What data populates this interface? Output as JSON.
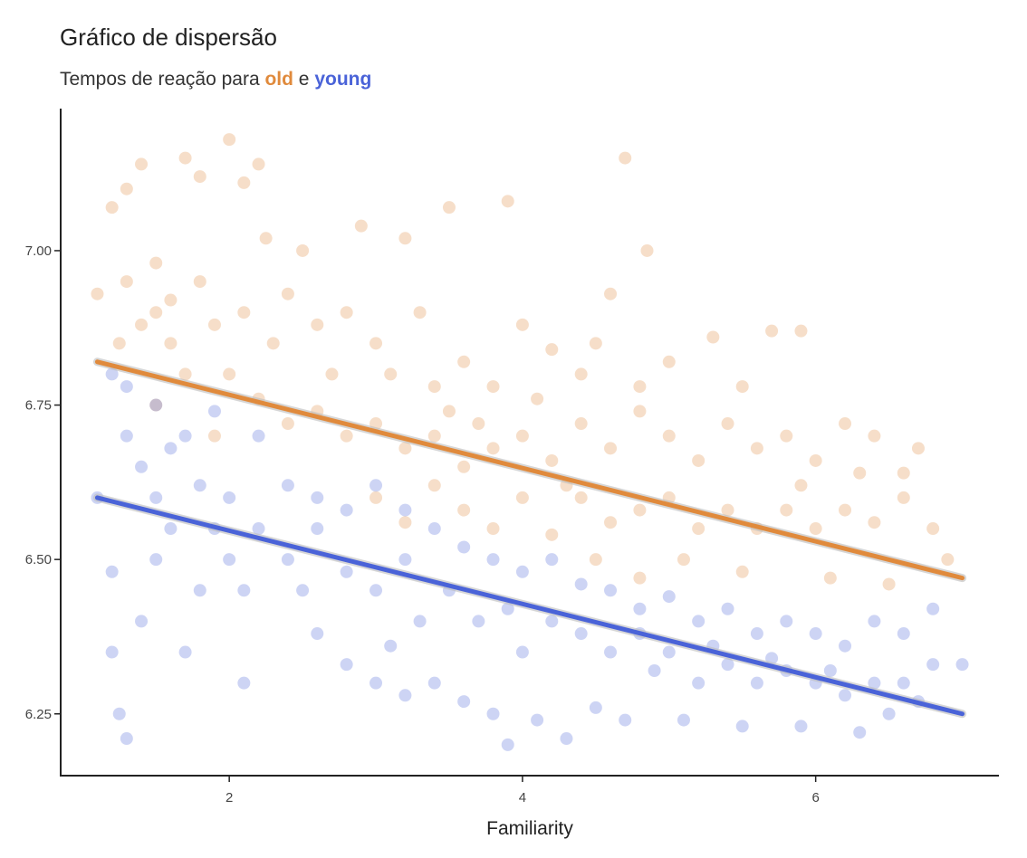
{
  "chart_data": {
    "type": "scatter",
    "title": "Gráfico de dispersão",
    "subtitle": {
      "prefix": "Tempos de reação para ",
      "old": "old",
      "connector": " e ",
      "young": "young"
    },
    "xlabel": "Familiarity",
    "ylabel": "",
    "xlim": [
      0.85,
      7.25
    ],
    "ylim": [
      6.15,
      7.23
    ],
    "x_ticks": [
      2,
      4,
      6
    ],
    "x_tick_labels": [
      "2",
      "4",
      "6"
    ],
    "y_ticks": [
      6.25,
      6.5,
      6.75,
      7.0
    ],
    "y_tick_labels": [
      "6.25",
      "6.50",
      "6.75",
      "7.00"
    ],
    "grid": false,
    "legend": "none",
    "series": [
      {
        "name": "old",
        "color": "#E08A3C",
        "trend": {
          "x": [
            1.1,
            7.0
          ],
          "y": [
            6.82,
            6.47
          ]
        },
        "points": [
          [
            1.1,
            6.93
          ],
          [
            1.2,
            7.07
          ],
          [
            1.3,
            7.1
          ],
          [
            1.25,
            6.85
          ],
          [
            1.4,
            7.14
          ],
          [
            1.5,
            6.98
          ],
          [
            1.6,
            6.92
          ],
          [
            1.7,
            7.15
          ],
          [
            1.8,
            7.12
          ],
          [
            2.0,
            7.18
          ],
          [
            2.1,
            7.11
          ],
          [
            2.2,
            7.14
          ],
          [
            2.25,
            7.02
          ],
          [
            2.5,
            7.0
          ],
          [
            2.9,
            7.04
          ],
          [
            3.2,
            7.02
          ],
          [
            3.5,
            7.07
          ],
          [
            3.9,
            7.08
          ],
          [
            4.7,
            7.15
          ],
          [
            4.85,
            7.0
          ],
          [
            1.3,
            6.95
          ],
          [
            1.5,
            6.9
          ],
          [
            1.6,
            6.85
          ],
          [
            1.8,
            6.95
          ],
          [
            1.9,
            6.88
          ],
          [
            2.0,
            6.8
          ],
          [
            2.1,
            6.9
          ],
          [
            2.3,
            6.85
          ],
          [
            2.4,
            6.93
          ],
          [
            2.6,
            6.88
          ],
          [
            2.8,
            6.9
          ],
          [
            3.0,
            6.85
          ],
          [
            3.3,
            6.9
          ],
          [
            3.4,
            6.78
          ],
          [
            3.6,
            6.82
          ],
          [
            3.8,
            6.78
          ],
          [
            4.0,
            6.88
          ],
          [
            4.2,
            6.84
          ],
          [
            4.4,
            6.8
          ],
          [
            4.5,
            6.85
          ],
          [
            4.6,
            6.93
          ],
          [
            4.8,
            6.78
          ],
          [
            5.0,
            6.82
          ],
          [
            5.3,
            6.86
          ],
          [
            5.7,
            6.87
          ],
          [
            5.9,
            6.87
          ],
          [
            1.5,
            6.75
          ],
          [
            1.7,
            6.8
          ],
          [
            1.9,
            6.7
          ],
          [
            2.2,
            6.76
          ],
          [
            2.4,
            6.72
          ],
          [
            2.6,
            6.74
          ],
          [
            2.8,
            6.7
          ],
          [
            3.0,
            6.72
          ],
          [
            3.2,
            6.68
          ],
          [
            3.4,
            6.7
          ],
          [
            3.6,
            6.65
          ],
          [
            3.8,
            6.68
          ],
          [
            4.0,
            6.7
          ],
          [
            4.2,
            6.66
          ],
          [
            4.4,
            6.72
          ],
          [
            4.6,
            6.68
          ],
          [
            4.8,
            6.74
          ],
          [
            5.0,
            6.7
          ],
          [
            5.2,
            6.66
          ],
          [
            5.4,
            6.72
          ],
          [
            5.6,
            6.68
          ],
          [
            5.8,
            6.7
          ],
          [
            6.0,
            6.66
          ],
          [
            6.2,
            6.72
          ],
          [
            6.4,
            6.7
          ],
          [
            3.0,
            6.6
          ],
          [
            3.2,
            6.56
          ],
          [
            3.4,
            6.62
          ],
          [
            3.6,
            6.58
          ],
          [
            3.8,
            6.55
          ],
          [
            4.0,
            6.6
          ],
          [
            4.2,
            6.54
          ],
          [
            4.4,
            6.6
          ],
          [
            4.6,
            6.56
          ],
          [
            4.8,
            6.58
          ],
          [
            5.0,
            6.6
          ],
          [
            5.2,
            6.55
          ],
          [
            5.4,
            6.58
          ],
          [
            5.6,
            6.55
          ],
          [
            5.8,
            6.58
          ],
          [
            6.0,
            6.55
          ],
          [
            6.2,
            6.58
          ],
          [
            6.4,
            6.56
          ],
          [
            6.6,
            6.6
          ],
          [
            6.8,
            6.55
          ],
          [
            6.9,
            6.5
          ],
          [
            4.5,
            6.5
          ],
          [
            4.8,
            6.47
          ],
          [
            5.1,
            6.5
          ],
          [
            5.5,
            6.48
          ],
          [
            6.1,
            6.47
          ],
          [
            6.5,
            6.46
          ],
          [
            6.7,
            6.68
          ],
          [
            1.4,
            6.88
          ],
          [
            2.7,
            6.8
          ],
          [
            3.1,
            6.8
          ],
          [
            3.5,
            6.74
          ],
          [
            3.7,
            6.72
          ],
          [
            4.1,
            6.76
          ],
          [
            4.3,
            6.62
          ],
          [
            5.5,
            6.78
          ],
          [
            5.9,
            6.62
          ],
          [
            6.3,
            6.64
          ],
          [
            6.6,
            6.64
          ]
        ]
      },
      {
        "name": "young",
        "color": "#4A63D8",
        "trend": {
          "x": [
            1.1,
            7.0
          ],
          "y": [
            6.6,
            6.25
          ]
        },
        "points": [
          [
            1.1,
            6.6
          ],
          [
            1.2,
            6.48
          ],
          [
            1.3,
            6.21
          ],
          [
            1.25,
            6.25
          ],
          [
            1.2,
            6.35
          ],
          [
            1.4,
            6.4
          ],
          [
            1.5,
            6.5
          ],
          [
            1.6,
            6.55
          ],
          [
            1.7,
            6.35
          ],
          [
            1.8,
            6.45
          ],
          [
            1.9,
            6.55
          ],
          [
            2.0,
            6.5
          ],
          [
            2.1,
            6.45
          ],
          [
            1.3,
            6.7
          ],
          [
            1.4,
            6.65
          ],
          [
            1.5,
            6.6
          ],
          [
            1.7,
            6.7
          ],
          [
            1.8,
            6.62
          ],
          [
            2.0,
            6.6
          ],
          [
            2.2,
            6.55
          ],
          [
            2.4,
            6.5
          ],
          [
            2.5,
            6.45
          ],
          [
            2.6,
            6.55
          ],
          [
            2.8,
            6.48
          ],
          [
            3.0,
            6.45
          ],
          [
            3.2,
            6.5
          ],
          [
            3.3,
            6.4
          ],
          [
            3.5,
            6.45
          ],
          [
            3.7,
            6.4
          ],
          [
            3.9,
            6.42
          ],
          [
            4.0,
            6.35
          ],
          [
            4.2,
            6.4
          ],
          [
            4.4,
            6.38
          ],
          [
            4.6,
            6.35
          ],
          [
            4.8,
            6.38
          ],
          [
            5.0,
            6.35
          ],
          [
            5.2,
            6.3
          ],
          [
            5.4,
            6.33
          ],
          [
            5.6,
            6.3
          ],
          [
            5.8,
            6.32
          ],
          [
            6.0,
            6.3
          ],
          [
            6.2,
            6.28
          ],
          [
            6.4,
            6.3
          ],
          [
            6.6,
            6.3
          ],
          [
            6.8,
            6.33
          ],
          [
            7.0,
            6.33
          ],
          [
            2.6,
            6.38
          ],
          [
            2.8,
            6.33
          ],
          [
            3.0,
            6.3
          ],
          [
            3.2,
            6.28
          ],
          [
            3.4,
            6.3
          ],
          [
            3.6,
            6.27
          ],
          [
            3.8,
            6.25
          ],
          [
            3.9,
            6.2
          ],
          [
            4.1,
            6.24
          ],
          [
            4.3,
            6.21
          ],
          [
            4.5,
            6.26
          ],
          [
            4.7,
            6.24
          ],
          [
            5.1,
            6.24
          ],
          [
            5.5,
            6.23
          ],
          [
            5.9,
            6.23
          ],
          [
            6.3,
            6.22
          ],
          [
            6.5,
            6.25
          ],
          [
            6.7,
            6.27
          ],
          [
            1.5,
            6.75
          ],
          [
            1.6,
            6.68
          ],
          [
            1.9,
            6.74
          ],
          [
            2.2,
            6.7
          ],
          [
            2.4,
            6.62
          ],
          [
            2.6,
            6.6
          ],
          [
            2.8,
            6.58
          ],
          [
            3.0,
            6.62
          ],
          [
            3.2,
            6.58
          ],
          [
            3.4,
            6.55
          ],
          [
            3.6,
            6.52
          ],
          [
            3.8,
            6.5
          ],
          [
            4.0,
            6.48
          ],
          [
            4.2,
            6.5
          ],
          [
            4.4,
            6.46
          ],
          [
            4.6,
            6.45
          ],
          [
            4.8,
            6.42
          ],
          [
            5.0,
            6.44
          ],
          [
            5.2,
            6.4
          ],
          [
            5.4,
            6.42
          ],
          [
            5.6,
            6.38
          ],
          [
            5.8,
            6.4
          ],
          [
            6.0,
            6.38
          ],
          [
            6.2,
            6.36
          ],
          [
            6.4,
            6.4
          ],
          [
            6.6,
            6.38
          ],
          [
            6.8,
            6.42
          ],
          [
            1.2,
            6.8
          ],
          [
            1.3,
            6.78
          ],
          [
            2.1,
            6.3
          ],
          [
            3.1,
            6.36
          ],
          [
            4.9,
            6.32
          ],
          [
            5.3,
            6.36
          ],
          [
            5.7,
            6.34
          ],
          [
            6.1,
            6.32
          ]
        ]
      }
    ]
  }
}
